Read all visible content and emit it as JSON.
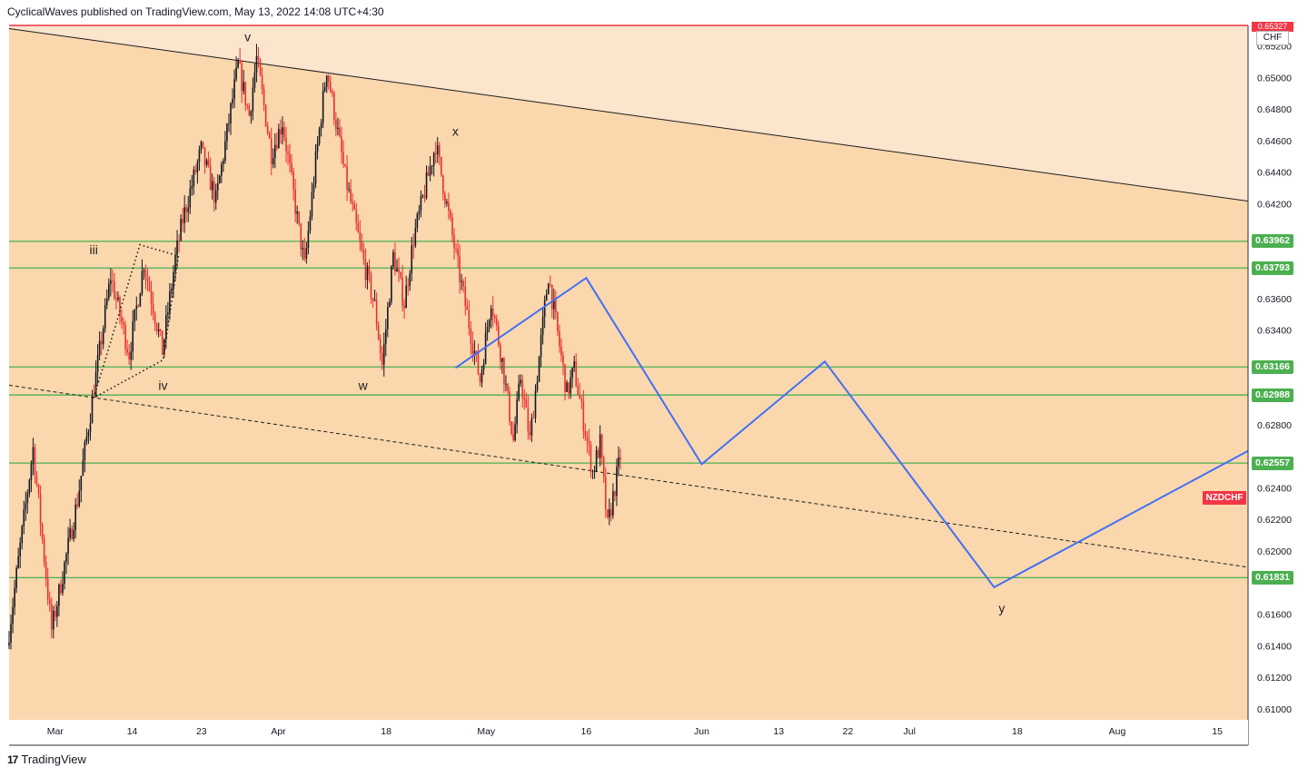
{
  "header": {
    "publisher": "CyclicalWaves published on TradingView.com, May 13, 2022 14:08 UTC+4:30"
  },
  "footer": {
    "brand": "TradingView",
    "logo_glyph": "17"
  },
  "colors": {
    "background_zone_upper": "#fbe5cd",
    "background_zone_main": "#fad7ad",
    "up_candle": "#131722",
    "down_candle": "#e83030",
    "support_lines": "#4caf50",
    "projection_path": "#4170f5",
    "resistance_top": "#f23645"
  },
  "chart_data": {
    "type": "candlestick",
    "symbol": "NZDCHF",
    "currency": "CHF",
    "current_price_tag": "0.65327",
    "y_axis": {
      "ylim": [
        0.6093,
        0.6533
      ],
      "ticks": [
        "0.65200",
        "0.65000",
        "0.64800",
        "0.64600",
        "0.64400",
        "0.64200",
        "0.63600",
        "0.63400",
        "0.62800",
        "0.62400",
        "0.62200",
        "0.62000",
        "0.61600",
        "0.61400",
        "0.61200",
        "0.61000"
      ]
    },
    "x_axis": {
      "range_days": [
        0,
        161
      ],
      "ticks": [
        {
          "day": 6,
          "label": "Mar"
        },
        {
          "day": 16,
          "label": "14"
        },
        {
          "day": 25,
          "label": "23"
        },
        {
          "day": 35,
          "label": "Apr"
        },
        {
          "day": 49,
          "label": "18"
        },
        {
          "day": 62,
          "label": "May"
        },
        {
          "day": 75,
          "label": "16"
        },
        {
          "day": 90,
          "label": "Jun"
        },
        {
          "day": 100,
          "label": "13"
        },
        {
          "day": 109,
          "label": "22"
        },
        {
          "day": 117,
          "label": "Jul"
        },
        {
          "day": 131,
          "label": "18"
        },
        {
          "day": 144,
          "label": "Aug"
        },
        {
          "day": 157,
          "label": "15"
        }
      ]
    },
    "horizontal_levels": [
      "0.63962",
      "0.63793",
      "0.63166",
      "0.62988",
      "0.62557",
      "0.61831"
    ],
    "horizontal_level_values": [
      0.63962,
      0.63793,
      0.63166,
      0.62988,
      0.62557,
      0.61831
    ],
    "wave_labels": [
      {
        "text": "v",
        "day": 31,
        "price": 0.6523
      },
      {
        "text": "iii",
        "day": 11,
        "price": 0.6388
      },
      {
        "text": "iv",
        "day": 20,
        "price": 0.6302
      },
      {
        "text": "w",
        "day": 46,
        "price": 0.6302
      },
      {
        "text": "x",
        "day": 58,
        "price": 0.6463
      },
      {
        "text": "y",
        "day": 129,
        "price": 0.6161
      }
    ],
    "trend_lines": [
      {
        "name": "upper-trendline",
        "points": [
          [
            0,
            0.6531
          ],
          [
            162,
            0.6421
          ]
        ],
        "style": "solid"
      },
      {
        "name": "lower-trendline",
        "points": [
          [
            0,
            0.6305
          ],
          [
            162,
            0.6189
          ]
        ],
        "style": "dashed"
      }
    ],
    "triangle": {
      "points": [
        [
          11,
          0.6297
        ],
        [
          17,
          0.6394
        ],
        [
          22,
          0.6387
        ],
        [
          20,
          0.6321
        ],
        [
          11,
          0.6297
        ]
      ]
    },
    "projection_path": [
      [
        58,
        0.6316
      ],
      [
        75,
        0.6373
      ],
      [
        90,
        0.6255
      ],
      [
        106,
        0.632
      ],
      [
        128,
        0.6177
      ],
      [
        162,
        0.6266
      ]
    ],
    "candles": {
      "start_day": 0,
      "step_days": 0.24,
      "segments": [
        [
          0.614,
          0.6265,
          14
        ],
        [
          0.6265,
          0.615,
          10
        ],
        [
          0.615,
          0.6232,
          14
        ],
        [
          0.6232,
          0.6374,
          18
        ],
        [
          0.6374,
          0.6325,
          10
        ],
        [
          0.6325,
          0.6383,
          8
        ],
        [
          0.6383,
          0.6327,
          10
        ],
        [
          0.6327,
          0.6385,
          7
        ],
        [
          0.6385,
          0.641,
          4
        ],
        [
          0.641,
          0.6454,
          10
        ],
        [
          0.6454,
          0.6422,
          8
        ],
        [
          0.6422,
          0.6508,
          12
        ],
        [
          0.6508,
          0.6476,
          6
        ],
        [
          0.6476,
          0.6512,
          4
        ],
        [
          0.6512,
          0.6452,
          8
        ],
        [
          0.6452,
          0.6472,
          6
        ],
        [
          0.6472,
          0.638,
          12
        ],
        [
          0.638,
          0.6447,
          6
        ],
        [
          0.6447,
          0.6506,
          6
        ],
        [
          0.6506,
          0.6437,
          10
        ],
        [
          0.6437,
          0.6383,
          10
        ],
        [
          0.6383,
          0.6355,
          6
        ],
        [
          0.6355,
          0.6318,
          4
        ],
        [
          0.6318,
          0.6387,
          6
        ],
        [
          0.6387,
          0.6357,
          6
        ],
        [
          0.6357,
          0.6398,
          5
        ],
        [
          0.6398,
          0.6458,
          12
        ],
        [
          0.6458,
          0.638,
          12
        ],
        [
          0.638,
          0.6308,
          12
        ],
        [
          0.6308,
          0.636,
          6
        ],
        [
          0.636,
          0.632,
          6
        ],
        [
          0.632,
          0.627,
          6
        ],
        [
          0.627,
          0.631,
          4
        ],
        [
          0.631,
          0.627,
          5
        ],
        [
          0.627,
          0.6375,
          10
        ],
        [
          0.6375,
          0.63,
          10
        ],
        [
          0.63,
          0.6315,
          4
        ],
        [
          0.6315,
          0.625,
          10
        ],
        [
          0.625,
          0.6268,
          4
        ],
        [
          0.6268,
          0.6215,
          4
        ],
        [
          0.6215,
          0.626,
          7
        ]
      ]
    }
  }
}
